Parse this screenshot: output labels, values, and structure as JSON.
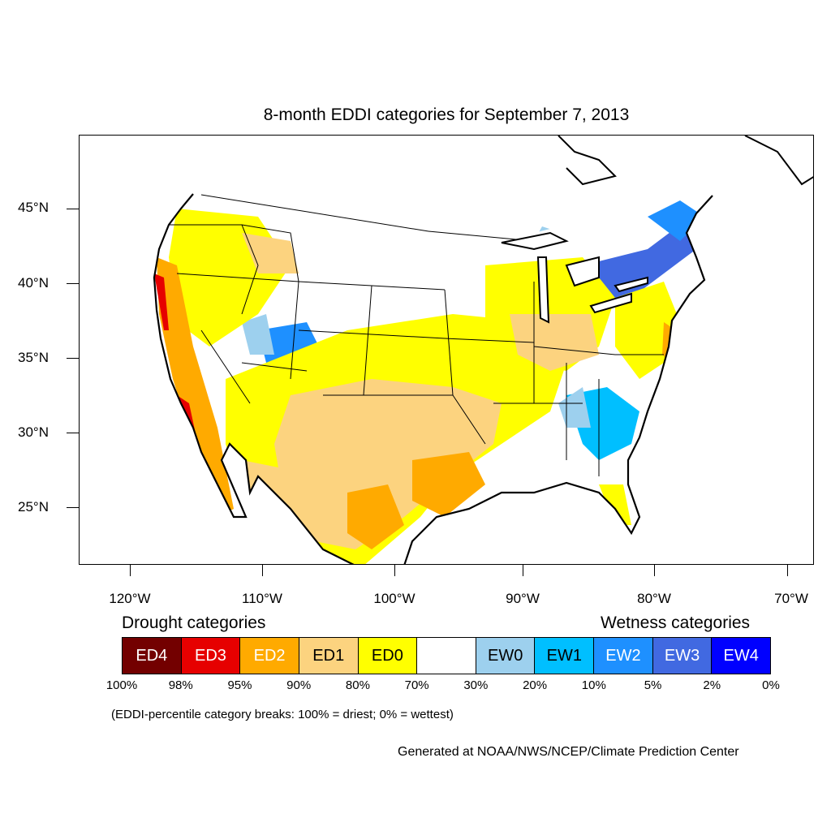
{
  "title": "8-month EDDI categories for September 7, 2013",
  "lat_labels": [
    "45°N",
    "40°N",
    "35°N",
    "30°N",
    "25°N"
  ],
  "lon_labels": [
    "120°W",
    "110°W",
    "100°W",
    "90°W",
    "80°W",
    "70°W"
  ],
  "legend": {
    "drought_heading": "Drought categories",
    "wetness_heading": "Wetness categories",
    "categories": [
      {
        "label": "ED4",
        "color": "#730000",
        "text_color": "#ffffff"
      },
      {
        "label": "ED3",
        "color": "#e60000",
        "text_color": "#ffffff"
      },
      {
        "label": "ED2",
        "color": "#ffaa00",
        "text_color": "#ffffff"
      },
      {
        "label": "ED1",
        "color": "#fcd37f",
        "text_color": "#000000"
      },
      {
        "label": "ED0",
        "color": "#ffff00",
        "text_color": "#000000"
      },
      {
        "label": "",
        "color": "#ffffff",
        "text_color": "#000000"
      },
      {
        "label": "EW0",
        "color": "#9dd0ee",
        "text_color": "#000000"
      },
      {
        "label": "EW1",
        "color": "#00bfff",
        "text_color": "#000000"
      },
      {
        "label": "EW2",
        "color": "#1e90ff",
        "text_color": "#ffffff"
      },
      {
        "label": "EW3",
        "color": "#4169e1",
        "text_color": "#ffffff"
      },
      {
        "label": "EW4",
        "color": "#0000ff",
        "text_color": "#ffffff"
      }
    ],
    "breaks": [
      "100%",
      "98%",
      "95%",
      "90%",
      "80%",
      "70%",
      "30%",
      "20%",
      "10%",
      "5%",
      "2%",
      "0%"
    ]
  },
  "note": "(EDDI-percentile category breaks: 100% = driest; 0% = wettest)",
  "credit": "Generated at NOAA/NWS/NCEP/Climate Prediction Center"
}
